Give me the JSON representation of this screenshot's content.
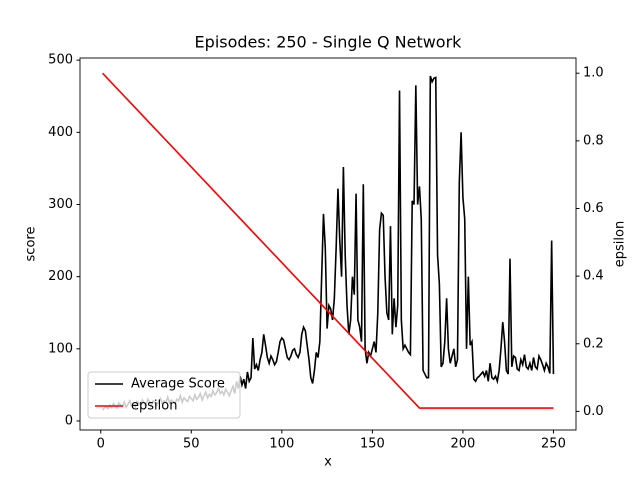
{
  "chart_data": {
    "type": "line",
    "title": "Episodes: 250 - Single Q Network",
    "xlabel": "x",
    "ylabel": "score",
    "ylabel_color": "#0000ff",
    "y2label": "epsilon",
    "y2label_color": "#ff0000",
    "xlim": [
      -11.45,
      262.45
    ],
    "xticks": [
      0,
      50,
      100,
      150,
      200,
      250
    ],
    "ylim": [
      -12.5,
      503
    ],
    "yticks": [
      0,
      100,
      200,
      300,
      400,
      500
    ],
    "y2lim": [
      -0.055,
      1.045
    ],
    "y2ticks": [
      {
        "value": 0,
        "label": "0.0"
      },
      0.2,
      0.4,
      0.6,
      0.8,
      {
        "value": 1,
        "label": "1.0"
      }
    ],
    "legend": "lower left",
    "series": [
      {
        "name": "Average Score",
        "color": "#000000",
        "x": [
          1,
          2,
          3,
          4,
          5,
          6,
          7,
          8,
          9,
          10,
          11,
          12,
          13,
          14,
          15,
          16,
          17,
          18,
          19,
          20,
          21,
          22,
          23,
          24,
          25,
          26,
          27,
          28,
          29,
          30,
          31,
          32,
          33,
          34,
          35,
          36,
          37,
          38,
          39,
          40,
          41,
          42,
          43,
          44,
          45,
          46,
          47,
          48,
          49,
          50,
          51,
          52,
          53,
          54,
          55,
          56,
          57,
          58,
          59,
          60,
          61,
          62,
          63,
          64,
          65,
          66,
          67,
          68,
          69,
          70,
          71,
          72,
          73,
          74,
          75,
          76,
          77,
          78,
          79,
          80,
          81,
          82,
          83,
          84,
          85,
          86,
          87,
          88,
          89,
          90,
          91,
          92,
          93,
          94,
          95,
          96,
          97,
          98,
          99,
          100,
          101,
          102,
          103,
          104,
          105,
          106,
          107,
          108,
          109,
          110,
          111,
          112,
          113,
          114,
          115,
          116,
          117,
          118,
          119,
          120,
          121,
          122,
          123,
          124,
          125,
          126,
          127,
          128,
          129,
          130,
          131,
          132,
          133,
          134,
          135,
          136,
          137,
          138,
          139,
          140,
          141,
          142,
          143,
          144,
          145,
          146,
          147,
          148,
          149,
          150,
          151,
          152,
          153,
          154,
          155,
          156,
          157,
          158,
          159,
          160,
          161,
          162,
          163,
          164,
          165,
          166,
          167,
          168,
          169,
          170,
          171,
          172,
          173,
          174,
          175,
          176,
          177,
          178,
          179,
          180,
          181,
          182,
          183,
          184,
          185,
          186,
          187,
          188,
          189,
          190,
          191,
          192,
          193,
          194,
          195,
          196,
          197,
          198,
          199,
          200,
          201,
          202,
          203,
          204,
          205,
          206,
          207,
          208,
          209,
          210,
          211,
          212,
          213,
          214,
          215,
          216,
          217,
          218,
          219,
          220,
          221,
          222,
          223,
          224,
          225,
          226,
          227,
          228,
          229,
          230,
          231,
          232,
          233,
          234,
          235,
          236,
          237,
          238,
          239,
          240,
          241,
          242,
          243,
          244,
          245,
          246,
          247,
          248,
          249,
          250
        ],
        "values": [
          15,
          18,
          20,
          17,
          22,
          19,
          24,
          21,
          18,
          25,
          22,
          20,
          26,
          19,
          23,
          28,
          21,
          24,
          20,
          27,
          25,
          22,
          29,
          24,
          21,
          30,
          26,
          23,
          28,
          25,
          22,
          27,
          31,
          24,
          28,
          26,
          33,
          25,
          29,
          27,
          24,
          30,
          28,
          35,
          26,
          32,
          29,
          27,
          34,
          31,
          28,
          36,
          30,
          33,
          38,
          29,
          35,
          40,
          32,
          37,
          34,
          42,
          36,
          39,
          45,
          38,
          41,
          36,
          44,
          40,
          35,
          42,
          48,
          38,
          55,
          45,
          62,
          50,
          58,
          45,
          68,
          55,
          60,
          115,
          72,
          78,
          70,
          85,
          95,
          120,
          105,
          88,
          80,
          90,
          85,
          78,
          82,
          95,
          110,
          115,
          112,
          100,
          88,
          85,
          90,
          98,
          100,
          92,
          88,
          95,
          120,
          130,
          125,
          105,
          85,
          60,
          52,
          70,
          95,
          88,
          110,
          200,
          287,
          240,
          128,
          160,
          155,
          140,
          170,
          240,
          322,
          250,
          200,
          352,
          230,
          160,
          120,
          140,
          200,
          175,
          315,
          140,
          130,
          110,
          328,
          100,
          80,
          95,
          90,
          100,
          110,
          95,
          150,
          265,
          288,
          285,
          200,
          150,
          140,
          270,
          120,
          170,
          130,
          160,
          458,
          140,
          100,
          105,
          100,
          95,
          92,
          305,
          300,
          465,
          300,
          325,
          280,
          70,
          65,
          60,
          60,
          478,
          470,
          475,
          476,
          230,
          190,
          75,
          80,
          110,
          170,
          100,
          80,
          90,
          100,
          75,
          85,
          330,
          400,
          310,
          280,
          100,
          200,
          105,
          110,
          58,
          55,
          60,
          62,
          65,
          68,
          62,
          70,
          55,
          80,
          60,
          58,
          62,
          55,
          70,
          100,
          137,
          110,
          70,
          65,
          225,
          75,
          90,
          88,
          72,
          70,
          85,
          78,
          92,
          75,
          72,
          80,
          70,
          88,
          75,
          72,
          90,
          85,
          78,
          70,
          80,
          75,
          66,
          250,
          65
        ]
      },
      {
        "name": "epsilon",
        "color": "#ff0000",
        "axis": "y2",
        "x": [
          1,
          176,
          250
        ],
        "values": [
          1.0,
          0.01,
          0.01
        ]
      }
    ]
  }
}
